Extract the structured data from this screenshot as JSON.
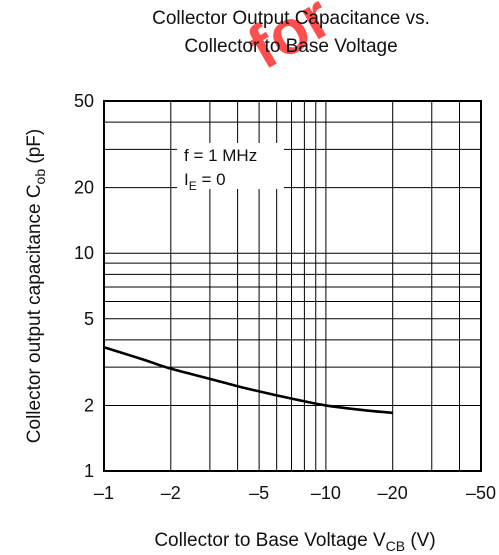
{
  "watermark": {
    "text": "for",
    "color": "#ff3b3b"
  },
  "chart_data": {
    "type": "line",
    "title_line1": "Collector Output Capacitance vs.",
    "title_line2": "Collector to Base Voltage",
    "xlabel": "Collector to Base Voltage  V",
    "xlabel_sub": "CB",
    "xlabel_unit": "(V)",
    "ylabel": "Collector output capacitance  C",
    "ylabel_sub": "ob",
    "ylabel_unit": "(pF)",
    "x_scale": "log",
    "y_scale": "log",
    "xlim": [
      -1,
      -50
    ],
    "ylim": [
      1,
      50
    ],
    "x_ticks": [
      {
        "value": -1,
        "label": "–1"
      },
      {
        "value": -2,
        "label": "–2"
      },
      {
        "value": -5,
        "label": "–5"
      },
      {
        "value": -10,
        "label": "–10"
      },
      {
        "value": -20,
        "label": "–20"
      },
      {
        "value": -50,
        "label": "–50"
      }
    ],
    "y_ticks": [
      {
        "value": 1,
        "label": "1"
      },
      {
        "value": 2,
        "label": "2"
      },
      {
        "value": 5,
        "label": "5"
      },
      {
        "value": 10,
        "label": "10"
      },
      {
        "value": 20,
        "label": "20"
      },
      {
        "value": 50,
        "label": "50"
      }
    ],
    "grid": true,
    "annotation_line1": "f = 1 MHz",
    "annotation_line2_main": "I",
    "annotation_line2_sub": "E",
    "annotation_line2_rest": " = 0",
    "series": [
      {
        "x": [
          -1,
          -1.5,
          -2,
          -3,
          -4,
          -5,
          -7,
          -10,
          -15,
          -20
        ],
        "y": [
          3.7,
          3.25,
          2.95,
          2.65,
          2.45,
          2.32,
          2.15,
          2.0,
          1.9,
          1.85
        ]
      }
    ]
  }
}
